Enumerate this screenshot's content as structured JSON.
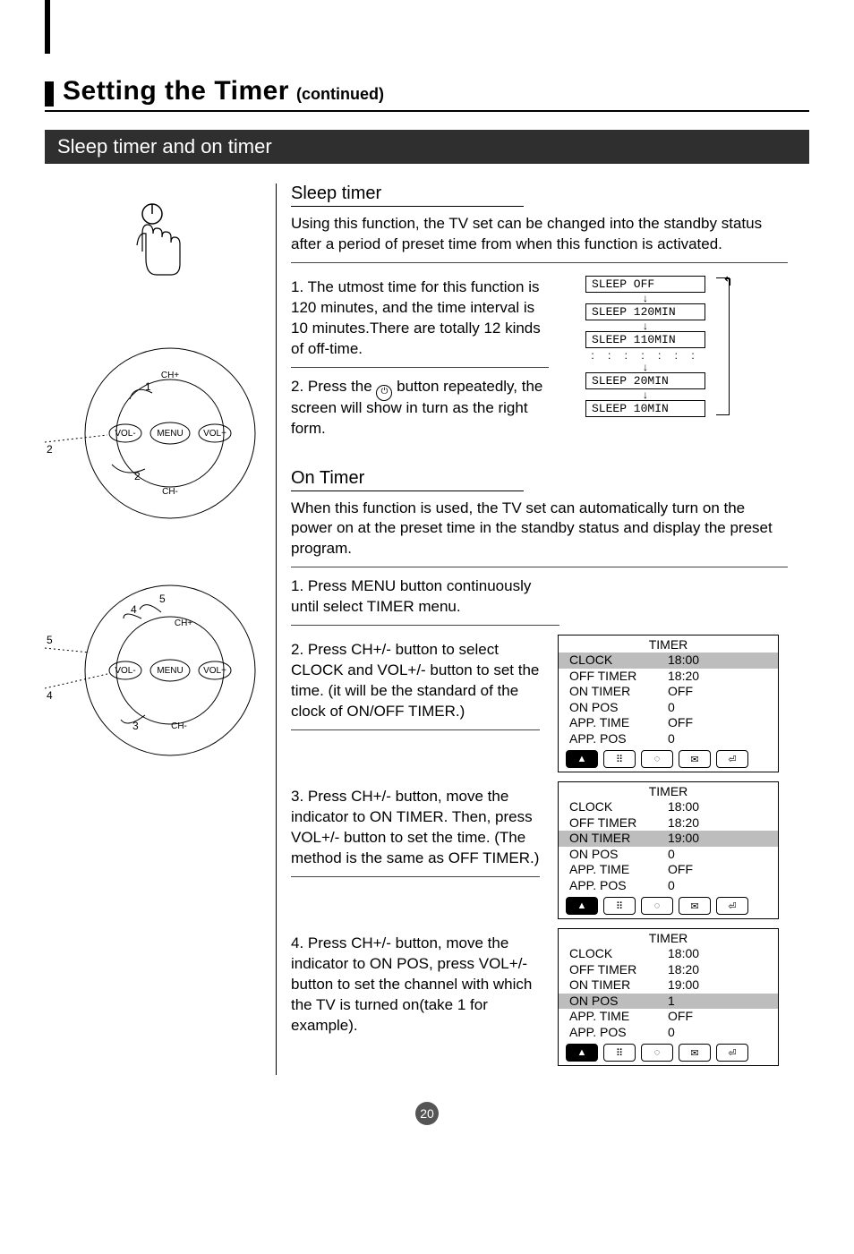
{
  "page": {
    "title_main": "Setting the Timer",
    "title_sub": "(continued)",
    "section_bar": "Sleep timer and on timer",
    "page_number": "20"
  },
  "sleep": {
    "heading": "Sleep timer",
    "intro": "Using this function, the TV set can be changed into the standby status after a period of preset time from when this function is activated.",
    "step1": "1. The utmost time for this function is 120 minutes, and the time interval is 10 minutes.There are totally 12 kinds of off-time.",
    "step2_a": "2. Press the ",
    "step2_b": " button repeatedly, the screen will show in turn as the right form.",
    "cycle": [
      "SLEEP OFF",
      "SLEEP 120MIN",
      "SLEEP 110MIN",
      "SLEEP 20MIN",
      "SLEEP 10MIN"
    ]
  },
  "ontimer": {
    "heading": "On Timer",
    "intro": "When this function is used, the TV set can automatically turn on the power on at the preset time in the standby status and display the preset program.",
    "step1": "1. Press MENU button continuously until select TIMER menu.",
    "step2": "2. Press CH+/- button to select CLOCK and VOL+/- button to set the time. (it will be the standard of the clock of ON/OFF TIMER.)",
    "step3": "3. Press CH+/- button, move the indicator to ON TIMER. Then, press VOL+/- button to set the time. (The method is the same as OFF TIMER.)",
    "step4": "4. Press CH+/- button, move the indicator to ON POS, press VOL+/- button to set the channel with which the TV is turned on(take 1 for example)."
  },
  "panels": {
    "title": "TIMER",
    "labels": [
      "CLOCK",
      "OFF TIMER",
      "ON TIMER",
      "ON POS",
      "APP. TIME",
      "APP. POS"
    ],
    "panel1_vals": [
      "18:00",
      "18:20",
      "OFF",
      "0",
      "OFF",
      "0"
    ],
    "panel1_hl": 0,
    "panel2_vals": [
      "18:00",
      "18:20",
      "19:00",
      "0",
      "OFF",
      "0"
    ],
    "panel2_hl": 2,
    "panel3_vals": [
      "18:00",
      "18:20",
      "19:00",
      "1",
      "OFF",
      "0"
    ],
    "panel3_hl": 3,
    "icons": [
      "▲",
      "⠿",
      "◌",
      "✉",
      "⏎"
    ]
  },
  "remote": {
    "labels": {
      "menu": "MENU",
      "volm": "VOL-",
      "volp": "VOL+",
      "chp": "CH+",
      "chm": "CH-"
    }
  }
}
